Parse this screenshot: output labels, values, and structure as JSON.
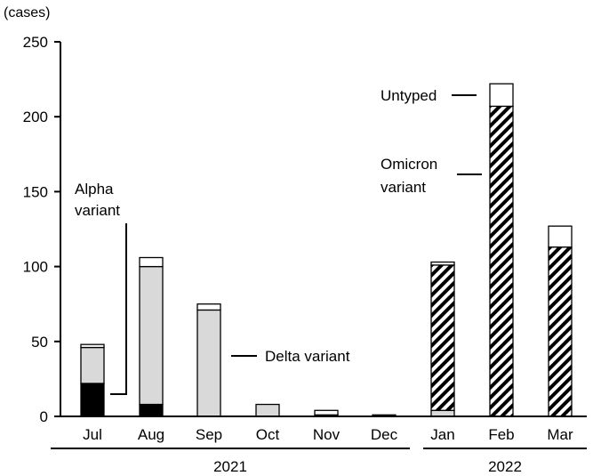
{
  "chart_data": {
    "type": "bar",
    "stacked": true,
    "unit_label": "(cases)",
    "ylim": [
      0,
      250
    ],
    "yticks": [
      0,
      50,
      100,
      150,
      200,
      250
    ],
    "categories": [
      "Jul",
      "Aug",
      "Sep",
      "Oct",
      "Nov",
      "Dec",
      "Jan",
      "Feb",
      "Mar"
    ],
    "year_groups": [
      {
        "label": "2021",
        "categories": [
          "Jul",
          "Aug",
          "Sep",
          "Oct",
          "Nov",
          "Dec"
        ]
      },
      {
        "label": "2022",
        "categories": [
          "Jan",
          "Feb",
          "Mar"
        ]
      }
    ],
    "series": [
      {
        "name": "Alpha variant",
        "fill": "#000000",
        "values": [
          22,
          8,
          0,
          0,
          0,
          0,
          0,
          0,
          0
        ]
      },
      {
        "name": "Delta variant",
        "fill": "#d9d9d9",
        "values": [
          24,
          92,
          71,
          8,
          1,
          0,
          4,
          0,
          0
        ]
      },
      {
        "name": "Omicron variant",
        "fill": "hatch",
        "values": [
          0,
          0,
          0,
          0,
          0,
          0,
          97,
          207,
          113
        ]
      },
      {
        "name": "Untyped",
        "fill": "#ffffff",
        "values": [
          2,
          6,
          4,
          0,
          3,
          1,
          2,
          15,
          14
        ]
      }
    ],
    "colors": {
      "axis": "#000000",
      "alpha": "#000000",
      "delta": "#d9d9d9",
      "untyped": "#ffffff",
      "hatch": "#000000"
    }
  }
}
